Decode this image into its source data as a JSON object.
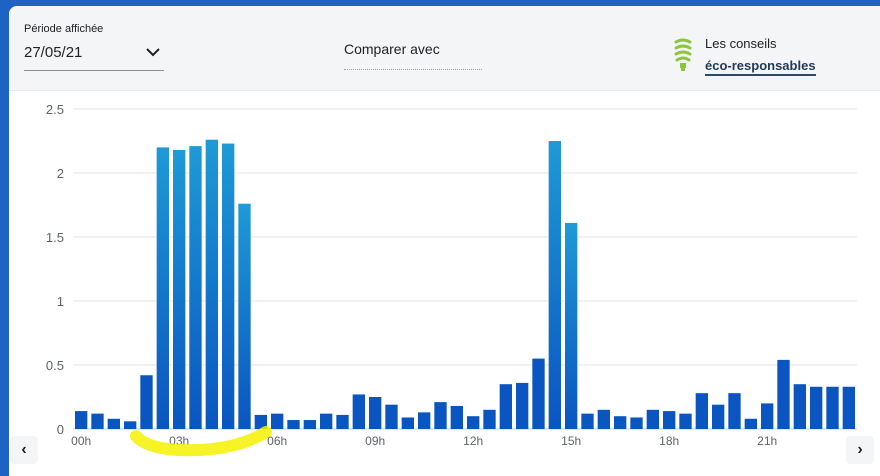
{
  "header": {
    "period_label": "Période affichée",
    "period_value": "27/05/21",
    "compare_label": "Comparer avec",
    "conseils_line1": "Les conseils",
    "conseils_line2": "éco-responsables"
  },
  "navigation": {
    "prev": "‹",
    "next": "›"
  },
  "colors": {
    "bar_top": "#1e9ad6",
    "bar_bottom": "#0a55c0",
    "bulb": "#8cc63f",
    "highlight": "#f4f100"
  },
  "chart_data": {
    "type": "bar",
    "x_tick_labels": [
      "00h",
      "03h",
      "06h",
      "09h",
      "12h",
      "15h",
      "18h",
      "21h"
    ],
    "x_tick_every": 6,
    "y_ticks": [
      "0",
      "0.5",
      "1",
      "1.5",
      "2",
      "2.5"
    ],
    "ylim": [
      0,
      2.5
    ],
    "grid": true,
    "values": [
      0.14,
      0.12,
      0.08,
      0.06,
      0.42,
      2.2,
      2.18,
      2.21,
      2.26,
      2.23,
      1.76,
      0.11,
      0.12,
      0.07,
      0.07,
      0.12,
      0.11,
      0.27,
      0.25,
      0.19,
      0.09,
      0.13,
      0.21,
      0.18,
      0.1,
      0.15,
      0.35,
      0.36,
      0.55,
      2.25,
      1.61,
      0.12,
      0.15,
      0.1,
      0.09,
      0.15,
      0.14,
      0.12,
      0.28,
      0.19,
      0.28,
      0.08,
      0.2,
      0.54,
      0.35,
      0.33,
      0.33,
      0.33
    ]
  }
}
